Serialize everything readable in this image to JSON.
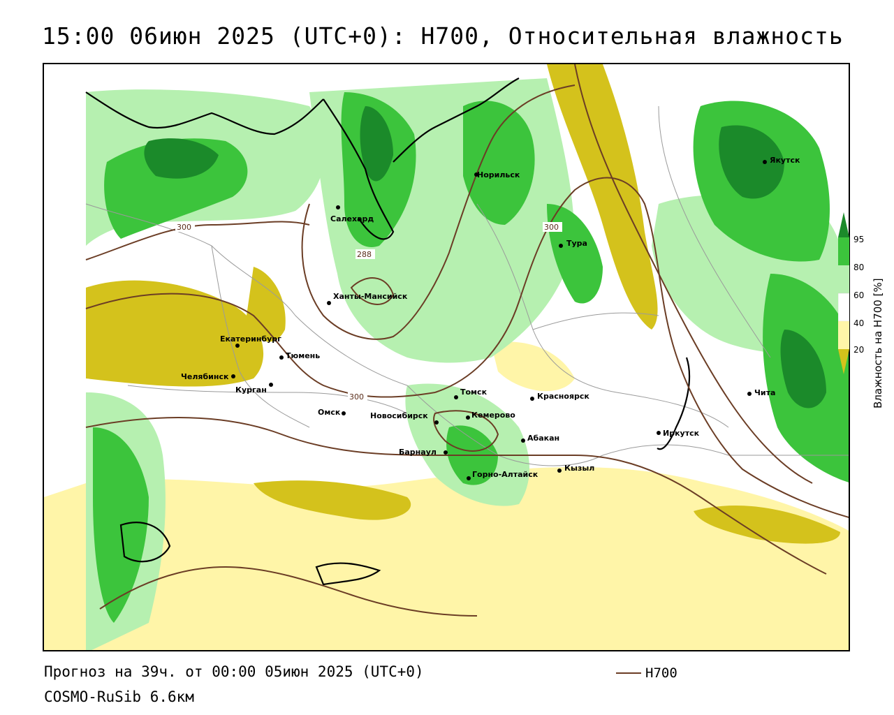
{
  "title": "15:00 06июн 2025 (UTC+0): H700, Относительная влажность",
  "footer": {
    "forecast": "Прогноз на 39ч. от 00:00 05июн 2025 (UTC+0)",
    "model": "COSMO-RuSib 6.6км"
  },
  "legend": {
    "line_label": "H700",
    "line_color": "#6b3d25"
  },
  "colorbar": {
    "title": "Влажность на H700 [%]",
    "ticks": [
      "95",
      "80",
      "60",
      "40",
      "20"
    ],
    "colors": {
      "c95": "#1b8a2a",
      "c80": "#3cc43c",
      "c60": "#b6f0b0",
      "c40": "#ffffff",
      "c20": "#fff5a8",
      "c0": "#d4c21c"
    }
  },
  "isohypse_labels": [
    "300",
    "288",
    "300",
    "300"
  ],
  "cities": [
    {
      "name": "Якутск"
    },
    {
      "name": "Норильск"
    },
    {
      "name": "Салехард"
    },
    {
      "name": "Тура"
    },
    {
      "name": "Ханты-Мансийск"
    },
    {
      "name": "Екатеринбург"
    },
    {
      "name": "Тюмень"
    },
    {
      "name": "Челябинск"
    },
    {
      "name": "Курган"
    },
    {
      "name": "Омск"
    },
    {
      "name": "Новосибирск"
    },
    {
      "name": "Томск"
    },
    {
      "name": "Кемерово"
    },
    {
      "name": "Красноярск"
    },
    {
      "name": "Барнаул"
    },
    {
      "name": "Абакан"
    },
    {
      "name": "Горно-Алтайск"
    },
    {
      "name": "Кызыл"
    },
    {
      "name": "Иркутск"
    },
    {
      "name": "Чита"
    }
  ]
}
